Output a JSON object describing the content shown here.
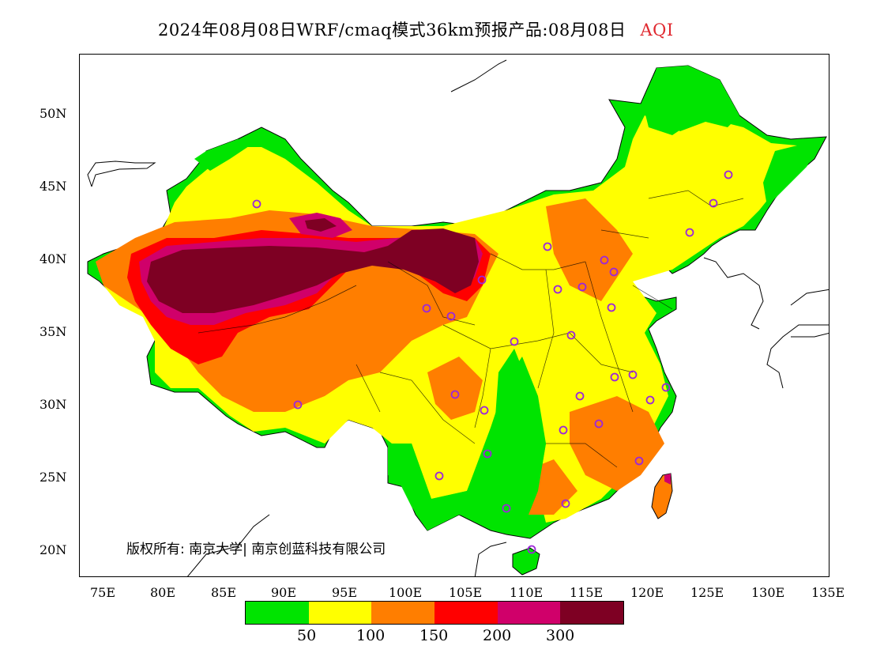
{
  "title": {
    "text": "2024年08月08日WRF/cmaq模式36km预报产品:08月08日",
    "variable": "AQI"
  },
  "lat_labels": [
    "50N",
    "45N",
    "40N",
    "35N",
    "30N",
    "25N",
    "20N"
  ],
  "lon_labels": [
    "75E",
    "80E",
    "85E",
    "90E",
    "95E",
    "100E",
    "105E",
    "110E",
    "115E",
    "120E",
    "125E",
    "130E",
    "135E"
  ],
  "copyright": "版权所有: 南京大学| 南京创蓝科技有限公司",
  "legend": {
    "colors": [
      "#00e400",
      "#ffff00",
      "#ff7e00",
      "#ff0000",
      "#d0006a",
      "#7e0023"
    ],
    "labels": [
      "50",
      "100",
      "150",
      "200",
      "300"
    ]
  },
  "colors": {
    "title_variable": "#e0282f",
    "station_marker": "#9c27d9"
  }
}
